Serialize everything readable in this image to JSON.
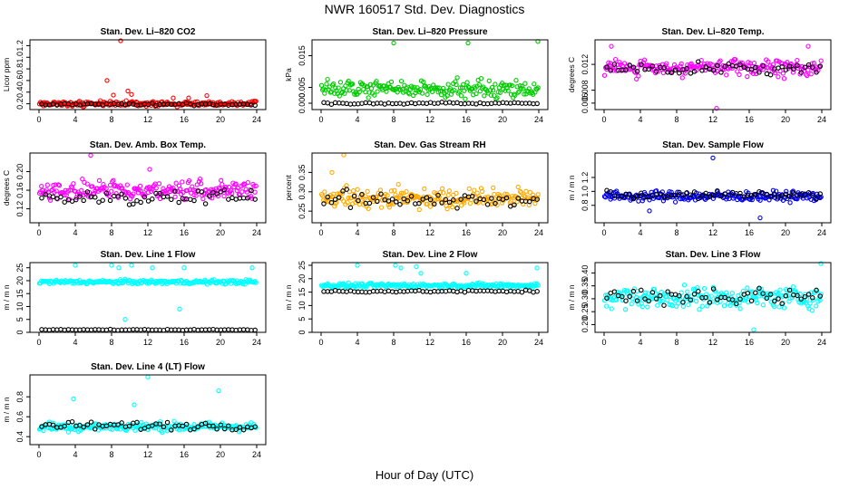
{
  "title": "NWR  160517  Std. Dev. Diagnostics",
  "xlabel": "Hour of Day (UTC)",
  "x_ticks": [
    0,
    4,
    8,
    12,
    16,
    20,
    24
  ],
  "chart_data": [
    {
      "type": "scatter",
      "title": "Stan. Dev. Li–820 CO2",
      "ylabel": "Licor ppm",
      "color": "#ff0000",
      "xlim": [
        0,
        24
      ],
      "ylim": [
        0.1,
        1.3
      ],
      "yticks": [
        0.2,
        0.4,
        0.6,
        0.8,
        1.0,
        1.2
      ],
      "ytick_labels": [
        "0.2",
        "0.4",
        "0.6",
        "0.8",
        "1.0",
        "1.2"
      ],
      "base": 0.2,
      "spread": 0.04,
      "black": 0.19,
      "black_spread": 0.02,
      "outliers": [
        [
          9.0,
          1.3
        ],
        [
          7.5,
          0.6
        ],
        [
          9.8,
          0.42
        ],
        [
          10.2,
          0.36
        ],
        [
          8.2,
          0.35
        ],
        [
          14.8,
          0.3
        ],
        [
          18.5,
          0.34
        ],
        [
          16.5,
          0.3
        ]
      ]
    },
    {
      "type": "scatter",
      "title": "Stan. Dev. Li–820 Pressure",
      "ylabel": "kPa",
      "color": "#00cc00",
      "xlim": [
        0,
        24
      ],
      "ylim": [
        -0.002,
        0.02
      ],
      "yticks": [
        0.0,
        0.005,
        0.015
      ],
      "ytick_labels": [
        "0.000",
        "0.005",
        "0.015"
      ],
      "base": 0.0045,
      "spread": 0.0025,
      "black": 0.0,
      "black_spread": 0.0003,
      "outliers": [
        [
          8.0,
          0.019
        ],
        [
          16.2,
          0.019
        ],
        [
          23.9,
          0.0195
        ]
      ]
    },
    {
      "type": "scatter",
      "title": "Stan. Dev. Li–820 Temp.",
      "ylabel": "degrees C",
      "color": "#ff00ff",
      "xlim": [
        0,
        24
      ],
      "ylim": [
        0.005,
        0.0158
      ],
      "yticks": [
        0.006,
        0.008,
        0.012
      ],
      "ytick_labels": [
        "0.006",
        "0.008",
        "0.012"
      ],
      "base": 0.0115,
      "spread": 0.0012,
      "black": 0.0113,
      "black_spread": 0.0009,
      "outliers": [
        [
          12.4,
          0.0052
        ],
        [
          0.8,
          0.0148
        ],
        [
          22.5,
          0.0148
        ]
      ]
    },
    {
      "type": "scatter",
      "title": "Stan. Dev. Amb. Box Temp.",
      "ylabel": "degrees C",
      "color": "#ff00ff",
      "xlim": [
        0,
        24
      ],
      "ylim": [
        0.09,
        0.24
      ],
      "yticks": [
        0.12,
        0.16,
        0.2
      ],
      "ytick_labels": [
        "0.12",
        "0.16",
        "0.20"
      ],
      "base": 0.16,
      "spread": 0.02,
      "black": 0.145,
      "black_spread": 0.015,
      "outliers": [
        [
          5.7,
          0.235
        ],
        [
          12.2,
          0.205
        ]
      ]
    },
    {
      "type": "scatter",
      "title": "Stan. Dev. Gas Stream RH",
      "ylabel": "percent",
      "color": "#ffaa00",
      "xlim": [
        0,
        24
      ],
      "ylim": [
        0.22,
        0.4
      ],
      "yticks": [
        0.25,
        0.3,
        0.35
      ],
      "ytick_labels": [
        "0.25",
        "0.30",
        "0.35"
      ],
      "base": 0.285,
      "spread": 0.025,
      "black": 0.28,
      "black_spread": 0.018,
      "outliers": [
        [
          2.5,
          0.395
        ],
        [
          1.2,
          0.35
        ]
      ]
    },
    {
      "type": "scatter",
      "title": "Stan. Dev. Sample Flow",
      "ylabel": "m / m n",
      "color": "#0000ee",
      "xlim": [
        0,
        24
      ],
      "ylim": [
        0.55,
        1.55
      ],
      "yticks": [
        0.8,
        1.0,
        1.2
      ],
      "ytick_labels": [
        "0.8",
        "1.0",
        "1.2"
      ],
      "base": 0.93,
      "spread": 0.07,
      "black": 0.95,
      "black_spread": 0.05,
      "outliers": [
        [
          12.0,
          1.48
        ],
        [
          17.2,
          0.62
        ],
        [
          5.0,
          0.72
        ]
      ]
    },
    {
      "type": "scatter",
      "title": "Stan. Dev. Line 1 Flow",
      "ylabel": "m / m n",
      "color": "#00ffff",
      "xlim": [
        0,
        24
      ],
      "ylim": [
        0,
        27
      ],
      "yticks": [
        0,
        5,
        10,
        15,
        20,
        25
      ],
      "ytick_labels": [
        "0",
        "5",
        "10",
        "15",
        "20",
        "25"
      ],
      "base": 19.5,
      "spread": 0.8,
      "black": 1.0,
      "black_spread": 0.2,
      "outliers": [
        [
          4.0,
          26
        ],
        [
          8.0,
          26
        ],
        [
          8.8,
          25
        ],
        [
          9.5,
          5
        ],
        [
          10.2,
          26
        ],
        [
          12.5,
          25
        ],
        [
          16.0,
          25
        ],
        [
          23.5,
          25
        ],
        [
          15.5,
          9
        ]
      ]
    },
    {
      "type": "scatter",
      "title": "Stan. Dev. Line 2 Flow",
      "ylabel": "m / m n",
      "color": "#00ffff",
      "xlim": [
        0,
        24
      ],
      "ylim": [
        0,
        26
      ],
      "yticks": [
        0,
        5,
        10,
        15,
        20,
        25
      ],
      "ytick_labels": [
        "0",
        "5",
        "10",
        "15",
        "20",
        "25"
      ],
      "base": 17.5,
      "spread": 0.8,
      "black": 15.3,
      "black_spread": 0.4,
      "outliers": [
        [
          4.0,
          25
        ],
        [
          8.2,
          25
        ],
        [
          8.8,
          24
        ],
        [
          10.5,
          24.5
        ],
        [
          11.0,
          22
        ],
        [
          16.0,
          22
        ],
        [
          23.8,
          24
        ]
      ]
    },
    {
      "type": "scatter",
      "title": "Stan. Dev. Line 3 Flow",
      "ylabel": "m / m n",
      "color": "#00ffff",
      "xlim": [
        0,
        24
      ],
      "ylim": [
        0.17,
        0.44
      ],
      "yticks": [
        0.2,
        0.25,
        0.3,
        0.35,
        0.4
      ],
      "ytick_labels": [
        "0.20",
        "0.25",
        "0.30",
        "0.35",
        "0.40"
      ],
      "base": 0.305,
      "spread": 0.04,
      "black": 0.31,
      "black_spread": 0.035,
      "outliers": [
        [
          16.5,
          0.18
        ],
        [
          23.9,
          0.44
        ]
      ]
    },
    {
      "type": "scatter",
      "title": "Stan. Dev. Line 4 (LT) Flow",
      "ylabel": "m / m n",
      "color": "#00ffff",
      "xlim": [
        0,
        24
      ],
      "ylim": [
        0.32,
        1.02
      ],
      "yticks": [
        0.4,
        0.6,
        0.8
      ],
      "ytick_labels": [
        "0.4",
        "0.6",
        "0.8"
      ],
      "base": 0.5,
      "spread": 0.045,
      "black": 0.51,
      "black_spread": 0.04,
      "outliers": [
        [
          12.0,
          1.0
        ],
        [
          3.8,
          0.78
        ],
        [
          19.8,
          0.86
        ],
        [
          10.5,
          0.72
        ]
      ]
    }
  ]
}
